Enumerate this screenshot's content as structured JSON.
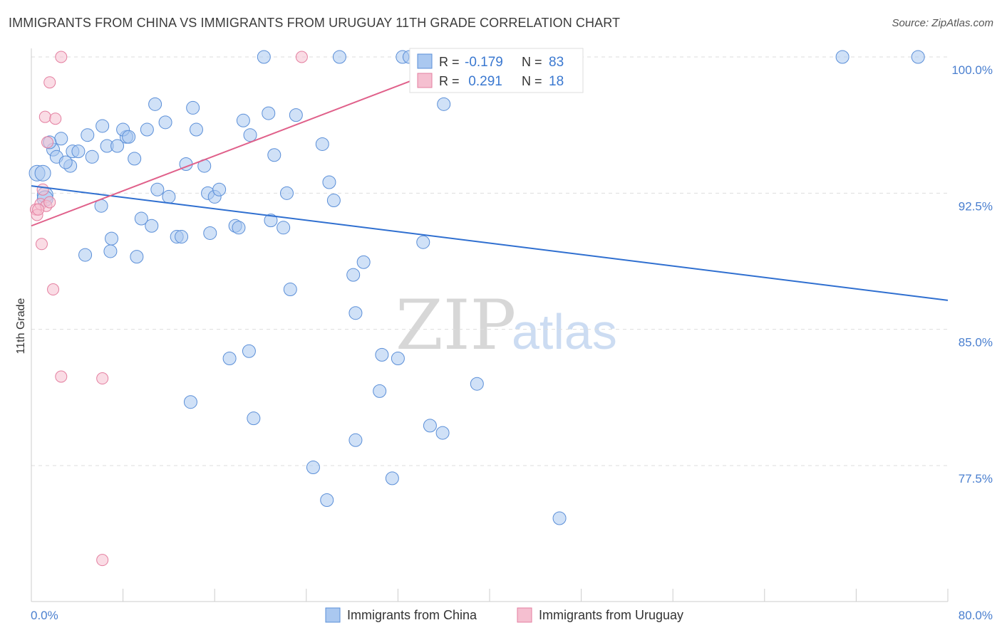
{
  "title": "IMMIGRANTS FROM CHINA VS IMMIGRANTS FROM URUGUAY 11TH GRADE CORRELATION CHART",
  "source": "Source: ZipAtlas.com",
  "watermark": {
    "zip": "ZIP",
    "atlas": "atlas"
  },
  "chart_data": {
    "type": "scatter",
    "ylabel": "11th Grade",
    "xlim": [
      0,
      80
    ],
    "ylim": [
      71.5,
      100.8
    ],
    "x_ticks": [
      {
        "value": 0,
        "label": "0.0%"
      },
      {
        "value": 80,
        "label": "80.0%"
      }
    ],
    "y_ticks": [
      {
        "value": 100,
        "label": "100.0%"
      },
      {
        "value": 92.5,
        "label": "92.5%"
      },
      {
        "value": 85,
        "label": "85.0%"
      },
      {
        "value": 77.5,
        "label": "77.5%"
      }
    ],
    "grid": "horizontal dashed",
    "legend_position": "top-center",
    "legend": [
      {
        "name": "Immigrants from China",
        "r_label": "R =",
        "r": "-0.179",
        "n_label": "N =",
        "n": "83"
      },
      {
        "name": "Immigrants from Uruguay",
        "r_label": "R =",
        "r": " 0.291",
        "n_label": "N =",
        "n": "18"
      }
    ],
    "colors": {
      "china_fill": "#aac8f0",
      "china_stroke": "#5b8fd8",
      "china_line": "#2f6fd0",
      "uruguay_fill": "#f5bfd0",
      "uruguay_stroke": "#e47fa0",
      "uruguay_line": "#e0608a",
      "tick": "#4a7fcf",
      "grid": "#dddddd"
    },
    "series": [
      {
        "name": "Immigrants from China",
        "trend": {
          "x": [
            0,
            80
          ],
          "y": [
            92.9,
            86.6
          ]
        },
        "points": [
          [
            0.5,
            93.6
          ],
          [
            1.0,
            93.6
          ],
          [
            1.2,
            92.4
          ],
          [
            1.9,
            94.9
          ],
          [
            2.6,
            95.5
          ],
          [
            2.2,
            94.5
          ],
          [
            3.4,
            94.0
          ],
          [
            3.6,
            94.8
          ],
          [
            4.1,
            94.8
          ],
          [
            4.9,
            95.7
          ],
          [
            5.3,
            94.5
          ],
          [
            6.1,
            91.8
          ],
          [
            6.2,
            96.2
          ],
          [
            6.6,
            95.1
          ],
          [
            7.5,
            95.1
          ],
          [
            8.3,
            95.6
          ],
          [
            8.0,
            96.0
          ],
          [
            8.5,
            95.6
          ],
          [
            9.0,
            94.4
          ],
          [
            9.6,
            91.1
          ],
          [
            10.1,
            96.0
          ],
          [
            10.8,
            97.4
          ],
          [
            11.7,
            96.4
          ],
          [
            12.0,
            92.3
          ],
          [
            13.5,
            94.1
          ],
          [
            14.1,
            97.2
          ],
          [
            14.4,
            96.0
          ],
          [
            15.1,
            94.0
          ],
          [
            15.4,
            92.5
          ],
          [
            16.0,
            92.3
          ],
          [
            16.4,
            92.7
          ],
          [
            17.8,
            90.7
          ],
          [
            18.1,
            90.6
          ],
          [
            18.5,
            96.5
          ],
          [
            19.1,
            95.7
          ],
          [
            20.7,
            96.9
          ],
          [
            20.9,
            91.0
          ],
          [
            21.2,
            94.6
          ],
          [
            22.3,
            92.5
          ],
          [
            22.0,
            90.6
          ],
          [
            25.4,
            95.2
          ],
          [
            26.0,
            93.1
          ],
          [
            26.4,
            92.1
          ],
          [
            10.5,
            90.7
          ],
          [
            12.7,
            90.1
          ],
          [
            13.1,
            90.1
          ],
          [
            15.6,
            90.3
          ],
          [
            4.7,
            89.1
          ],
          [
            6.9,
            89.3
          ],
          [
            9.2,
            89.0
          ],
          [
            23.1,
            96.8
          ],
          [
            26.9,
            100.0
          ],
          [
            20.3,
            100.0
          ],
          [
            32.4,
            100.0
          ],
          [
            70.8,
            100.0
          ],
          [
            77.4,
            100.0
          ],
          [
            36.0,
            97.4
          ],
          [
            34.2,
            89.8
          ],
          [
            29.0,
            88.7
          ],
          [
            28.1,
            88.0
          ],
          [
            22.6,
            87.2
          ],
          [
            28.3,
            85.9
          ],
          [
            17.3,
            83.4
          ],
          [
            19.0,
            83.8
          ],
          [
            30.6,
            83.6
          ],
          [
            32.0,
            83.4
          ],
          [
            38.9,
            82.0
          ],
          [
            13.9,
            81.0
          ],
          [
            30.4,
            81.6
          ],
          [
            19.4,
            80.1
          ],
          [
            35.9,
            79.3
          ],
          [
            34.8,
            79.7
          ],
          [
            28.3,
            78.9
          ],
          [
            24.6,
            77.4
          ],
          [
            31.5,
            76.8
          ],
          [
            25.8,
            75.6
          ],
          [
            46.1,
            74.6
          ],
          [
            11.0,
            92.7
          ],
          [
            3.0,
            94.2
          ],
          [
            7.0,
            90.0
          ],
          [
            1.6,
            95.3
          ],
          [
            1.2,
            92.2
          ],
          [
            33.0,
            100.0
          ]
        ]
      },
      {
        "name": "Immigrants from Uruguay",
        "trend": {
          "x": [
            0,
            38.6
          ],
          "y": [
            90.7,
            100.0
          ]
        },
        "points": [
          [
            0.4,
            91.6
          ],
          [
            0.5,
            91.3
          ],
          [
            0.8,
            91.9
          ],
          [
            1.0,
            92.7
          ],
          [
            1.3,
            91.8
          ],
          [
            0.9,
            89.7
          ],
          [
            1.4,
            95.3
          ],
          [
            1.2,
            96.7
          ],
          [
            2.1,
            96.6
          ],
          [
            1.6,
            98.6
          ],
          [
            2.6,
            100.0
          ],
          [
            23.6,
            100.0
          ],
          [
            1.9,
            87.2
          ],
          [
            2.6,
            82.4
          ],
          [
            6.2,
            82.3
          ],
          [
            6.2,
            72.3
          ],
          [
            0.6,
            91.6
          ],
          [
            1.6,
            92.0
          ]
        ]
      }
    ]
  }
}
